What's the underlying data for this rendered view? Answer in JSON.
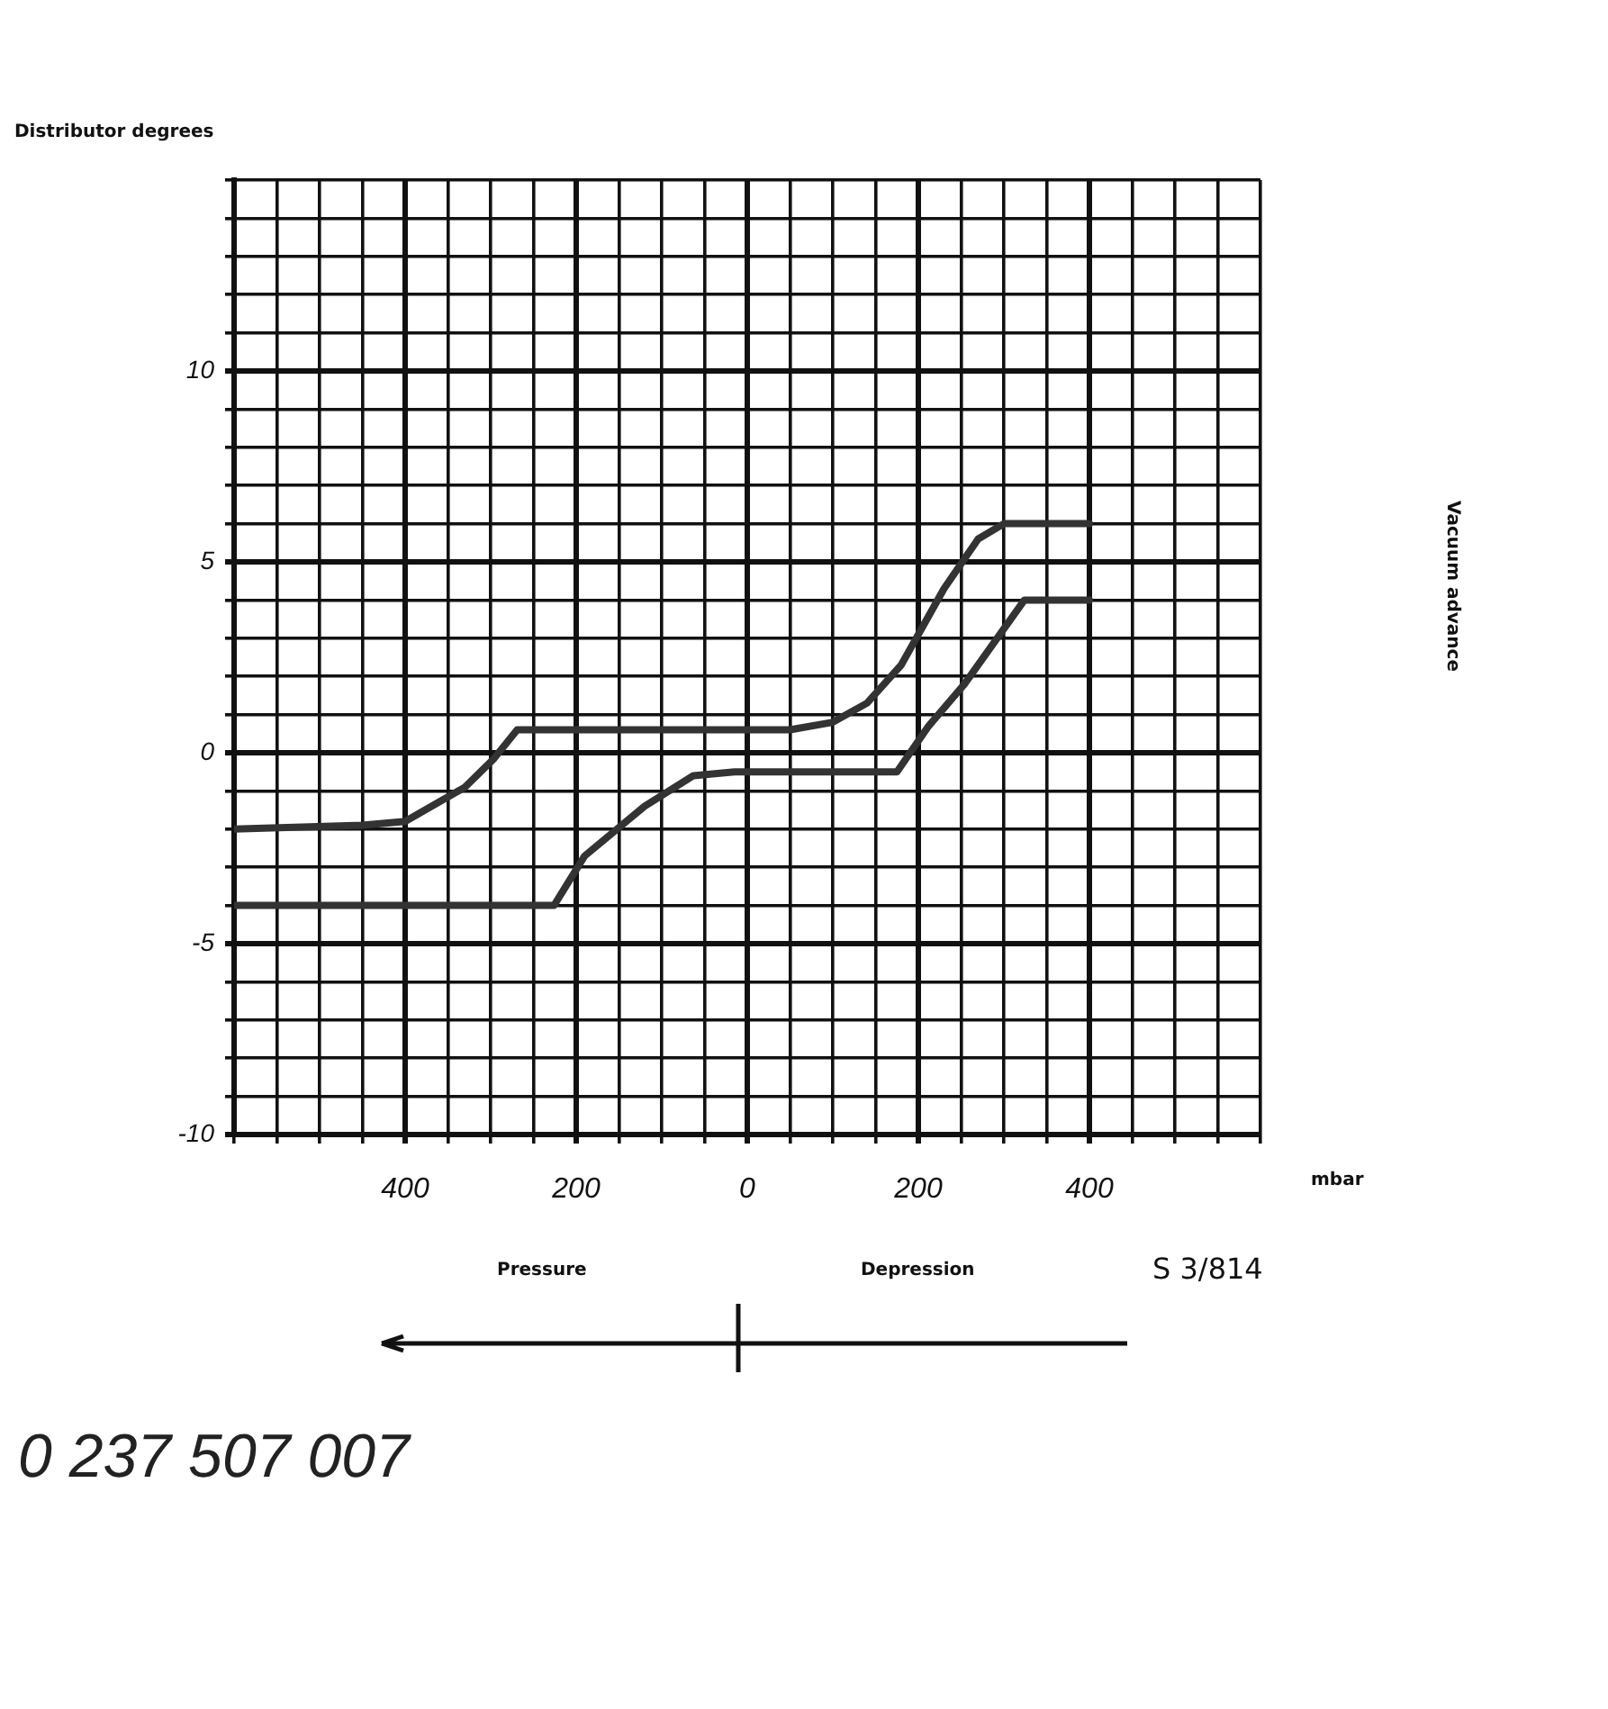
{
  "chart_data": {
    "type": "line",
    "ylabel": "Distributor degrees",
    "xlabel": "mbar",
    "annotations": [
      "Vacuum advance",
      "Pressure",
      "Depression",
      "S 3/814",
      "0 237 507 007"
    ],
    "series": [
      {
        "color": "#333333",
        "x": [
          -600,
          -450,
          -400,
          -330,
          -296,
          -269,
          -200,
          0,
          50,
          100,
          140,
          180,
          230,
          270,
          300,
          400
        ],
        "values": [
          -2,
          -1.9,
          -1.8,
          -0.9,
          -0.15,
          0.6,
          0.6,
          0.6,
          0.6,
          0.8,
          1.3,
          2.3,
          4.3,
          5.6,
          6,
          6
        ]
      },
      {
        "color": "#333333",
        "x": [
          -600,
          -226,
          -190,
          -120,
          -63,
          -15,
          100,
          175,
          212,
          254,
          324,
          400
        ],
        "values": [
          -4,
          -4,
          -2.7,
          -1.4,
          -0.6,
          -0.5,
          -0.5,
          -0.5,
          0.7,
          1.8,
          4,
          4
        ]
      }
    ],
    "xlim": [
      -600,
      600
    ],
    "xticks": [
      {
        "value": -600,
        "label": null
      },
      {
        "value": -550,
        "label": null
      },
      {
        "value": -500,
        "label": null
      },
      {
        "value": -450,
        "label": null
      },
      {
        "value": -400,
        "label": "400"
      },
      {
        "value": -350,
        "label": null
      },
      {
        "value": -300,
        "label": null
      },
      {
        "value": -250,
        "label": null
      },
      {
        "value": -200,
        "label": "200"
      },
      {
        "value": -150,
        "label": null
      },
      {
        "value": -100,
        "label": null
      },
      {
        "value": -50,
        "label": null
      },
      0,
      {
        "value": 50,
        "label": null
      },
      {
        "value": 100,
        "label": null
      },
      {
        "value": 150,
        "label": null
      },
      200,
      {
        "value": 250,
        "label": null
      },
      {
        "value": 300,
        "label": null
      },
      {
        "value": 350,
        "label": null
      },
      400,
      {
        "value": 450,
        "label": null
      },
      {
        "value": 500,
        "label": null
      },
      {
        "value": 550,
        "label": null
      },
      {
        "value": 600,
        "label": null
      }
    ],
    "ylim": [
      -10,
      15
    ],
    "yticks": [
      -10,
      {
        "value": -9,
        "label": null
      },
      {
        "value": -8,
        "label": null
      },
      {
        "value": -7,
        "label": null
      },
      {
        "value": -6,
        "label": null
      },
      -5,
      {
        "value": -4,
        "label": null
      },
      {
        "value": -3,
        "label": null
      },
      {
        "value": -2,
        "label": null
      },
      {
        "value": -1,
        "label": null
      },
      0,
      {
        "value": 1,
        "label": null
      },
      {
        "value": 2,
        "label": null
      },
      {
        "value": 3,
        "label": null
      },
      {
        "value": 4,
        "label": null
      },
      5,
      {
        "value": 6,
        "label": null
      },
      {
        "value": 7,
        "label": null
      },
      {
        "value": 8,
        "label": null
      },
      {
        "value": 9,
        "label": null
      },
      10,
      {
        "value": 11,
        "label": null
      },
      {
        "value": 12,
        "label": null
      },
      {
        "value": 13,
        "label": null
      },
      {
        "value": 14,
        "label": null
      },
      {
        "value": 15,
        "label": null
      }
    ],
    "grid": true,
    "legend": false,
    "marker": "none",
    "line_style": "solid"
  }
}
